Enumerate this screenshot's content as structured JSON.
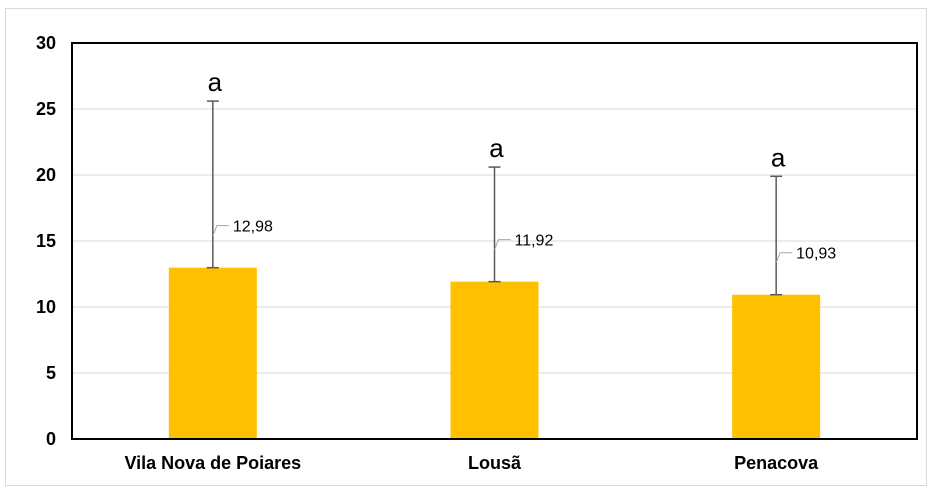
{
  "chart_data": {
    "type": "bar",
    "categories": [
      "Vila Nova de Poiares",
      "Lousã",
      "Penacova"
    ],
    "values": [
      12.98,
      11.92,
      10.93
    ],
    "value_labels": [
      "12,98",
      "11,92",
      "10,93"
    ],
    "error_upper": [
      25.6,
      20.6,
      19.9
    ],
    "significance_letters": [
      "a",
      "a",
      "a"
    ],
    "yticks": [
      "0",
      "5",
      "10",
      "15",
      "20",
      "25",
      "30"
    ],
    "ylim": [
      0,
      30
    ],
    "grid": true,
    "bar_color": "#FFC000",
    "error_bar_color": "#595959",
    "grid_color": "#d9d9d9"
  }
}
